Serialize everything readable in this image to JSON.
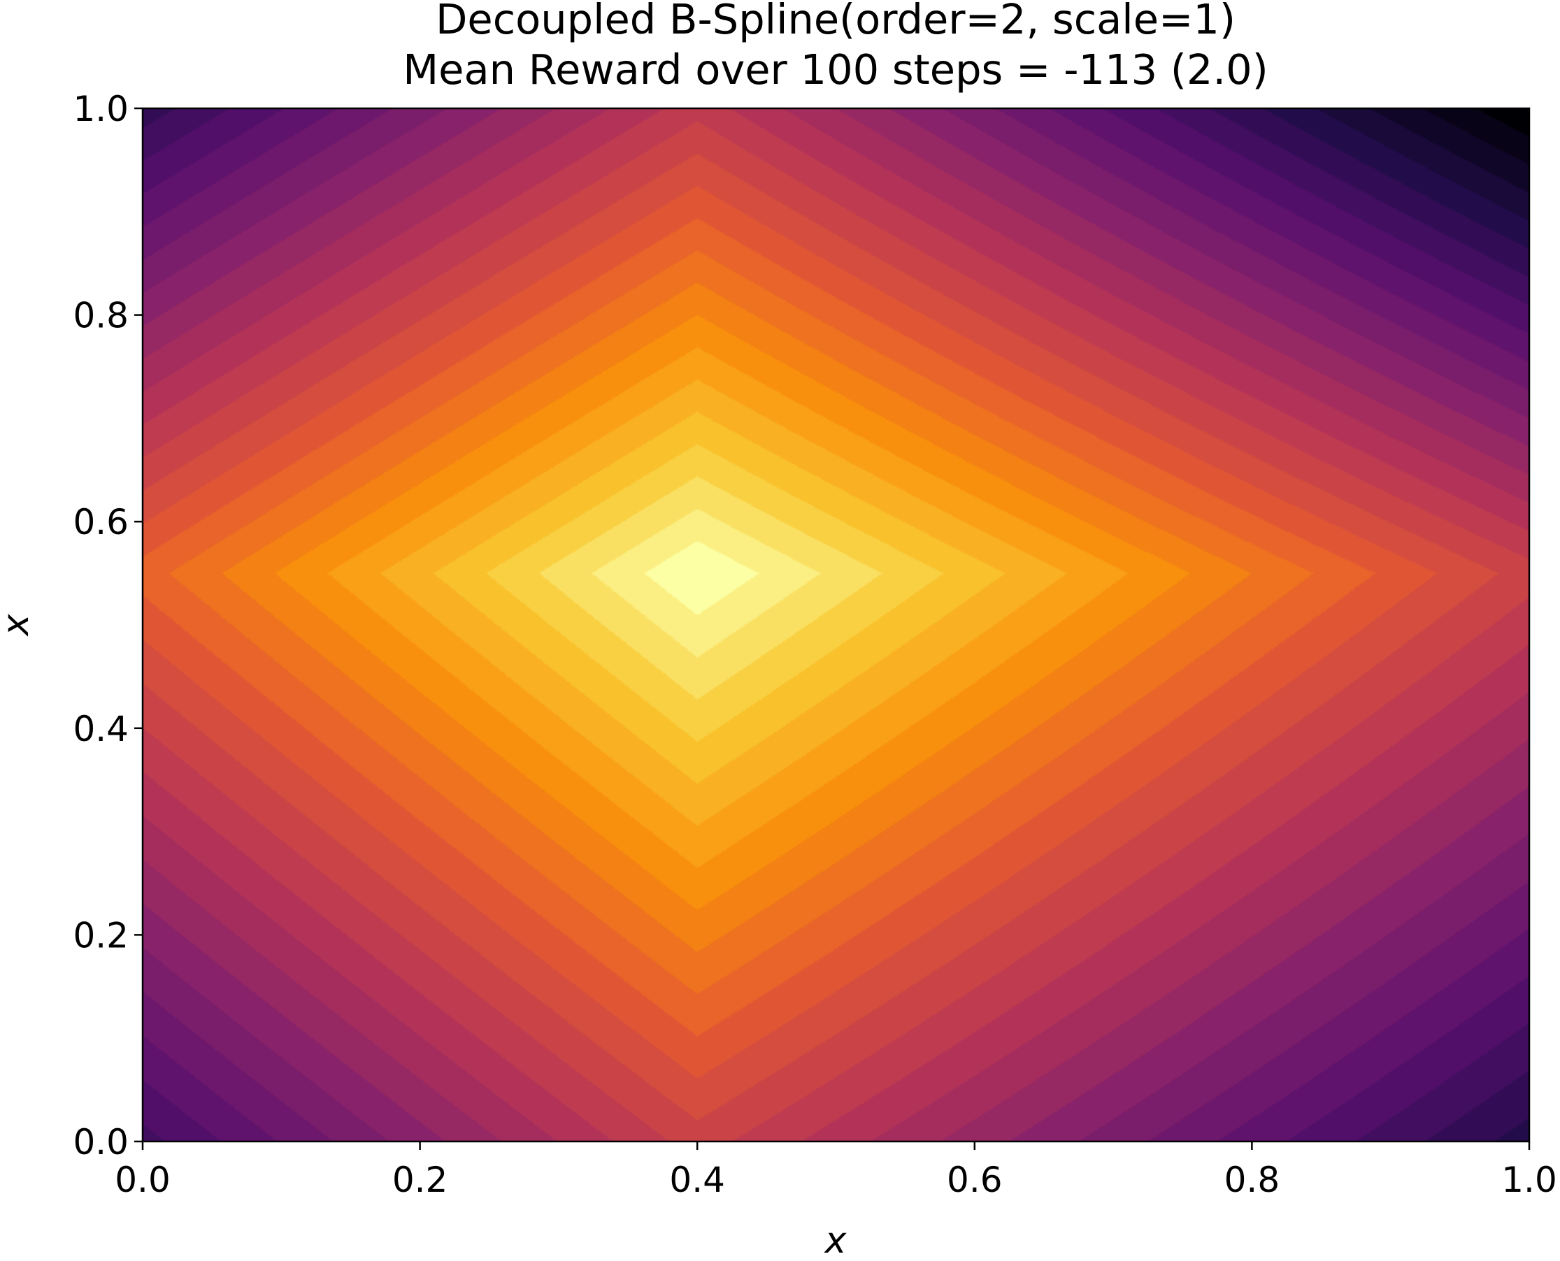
{
  "chart_data": {
    "type": "heatmap",
    "plot_style": "filled contour",
    "colormap": "inferno",
    "title": [
      "Decoupled B-Spline(order=2, scale=1)",
      "Mean Reward over 100 steps = -113 (2.0)"
    ],
    "xlabel": "x",
    "ylabel": "x",
    "xlim": [
      0.0,
      1.0
    ],
    "ylim": [
      0.0,
      1.0
    ],
    "x_ticks": [
      "0.0",
      "0.2",
      "0.4",
      "0.6",
      "0.8",
      "1.0"
    ],
    "y_ticks": [
      "0.0",
      "0.2",
      "0.4",
      "0.6",
      "0.8",
      "1.0"
    ],
    "grid": false,
    "legend": "none",
    "peak": {
      "x": 0.4,
      "y": 0.5
    },
    "field": {
      "x_knots": [
        0.0,
        0.4,
        1.0
      ],
      "y_knots": [
        0.0,
        0.55,
        1.0
      ],
      "z": [
        [
          0.22,
          0.55,
          0.15
        ],
        [
          0.65,
          1.0,
          0.55
        ],
        [
          0.18,
          0.52,
          0.0
        ]
      ],
      "levels": 30
    }
  }
}
